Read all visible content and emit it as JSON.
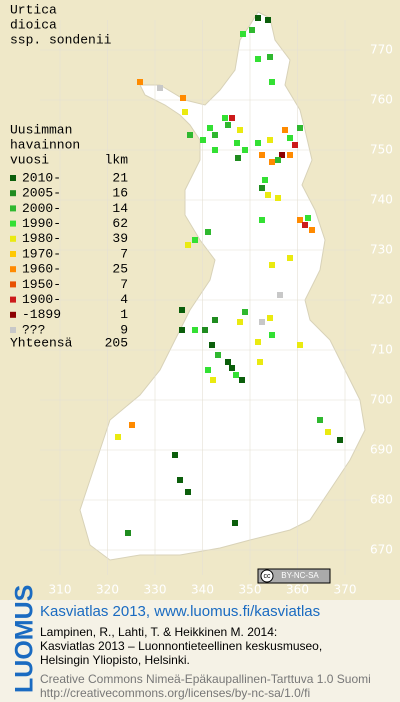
{
  "title": [
    "Urtica",
    "dioica",
    "ssp. sondenii"
  ],
  "legend": {
    "heading": [
      "Uusimman",
      "havainnon"
    ],
    "col_year": "vuosi",
    "col_count": "lkm",
    "rows": [
      {
        "label": "2010-",
        "count": 21,
        "color": "#0b5e0b"
      },
      {
        "label": "2005-",
        "count": 16,
        "color": "#1f8c1f"
      },
      {
        "label": "2000-",
        "count": 14,
        "color": "#2fb82f"
      },
      {
        "label": "1990-",
        "count": 62,
        "color": "#33e033"
      },
      {
        "label": "1980-",
        "count": 39,
        "color": "#eaea10"
      },
      {
        "label": "1970-",
        "count": 7,
        "color": "#ffc800"
      },
      {
        "label": "1960-",
        "count": 25,
        "color": "#ff8a00"
      },
      {
        "label": "1950-",
        "count": 7,
        "color": "#e85000"
      },
      {
        "label": "1900-",
        "count": 4,
        "color": "#cc1a1a"
      },
      {
        "label": "-1899",
        "count": 1,
        "color": "#8c0000"
      },
      {
        "label": "???",
        "count": 9,
        "color": "#c8c8c8"
      }
    ],
    "total_label": "Yhteensä",
    "total": 205
  },
  "grid": {
    "y_labels": [
      770,
      760,
      750,
      740,
      730,
      720,
      710,
      700,
      690,
      680,
      670
    ],
    "x_labels": [
      310,
      320,
      330,
      340,
      350,
      360,
      370
    ]
  },
  "badge": {
    "cc": "cc",
    "text": "BY-NC-SA"
  },
  "footer": {
    "logo": "LUOMUS",
    "heading": "Kasviatlas 2013, www.luomus.fi/kasviatlas",
    "citation": [
      "Lampinen, R., Lahti, T. & Heikkinen M. 2014:",
      "Kasviatlas 2013 – Luonnontieteellinen keskusmuseo,",
      "Helsingin Yliopisto, Helsinki."
    ],
    "license": [
      "Creative Commons Nimeä-Epäkaupallinen-Tarttuva 1.0 Suomi",
      "http://creativecommons.org/licenses/by-nc-sa/1.0/fi"
    ]
  }
}
